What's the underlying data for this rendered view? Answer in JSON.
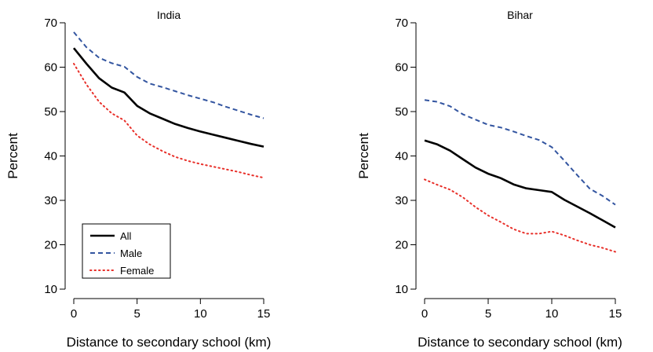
{
  "chart_data": [
    {
      "type": "line",
      "title": "India",
      "xlabel": "Distance to secondary school (km)",
      "ylabel": "Percent",
      "xlim": [
        0,
        15
      ],
      "ylim": [
        10,
        70
      ],
      "xticks": [
        0,
        5,
        10,
        15
      ],
      "yticks": [
        10,
        20,
        30,
        40,
        50,
        60,
        70
      ],
      "legend": "bottom-left",
      "grid": false,
      "x": [
        0,
        1,
        2,
        3,
        4,
        5,
        6,
        7,
        8,
        9,
        10,
        11,
        12,
        13,
        14,
        15
      ],
      "series": [
        {
          "name": "All",
          "color": "#000000",
          "dash": "solid",
          "values": [
            64.3,
            60.8,
            57.5,
            55.4,
            54.3,
            51.3,
            49.6,
            48.4,
            47.2,
            46.3,
            45.5,
            44.8,
            44.1,
            43.4,
            42.7,
            42.1
          ]
        },
        {
          "name": "Male",
          "color": "#3355a0",
          "dash": "dashed",
          "values": [
            67.9,
            64.5,
            62.1,
            60.9,
            60.1,
            57.8,
            56.3,
            55.5,
            54.6,
            53.7,
            52.9,
            52.1,
            51.1,
            50.2,
            49.3,
            48.5
          ]
        },
        {
          "name": "Female",
          "color": "#e8302a",
          "dash": "dotted",
          "values": [
            60.8,
            56.1,
            52.2,
            49.6,
            48.0,
            44.6,
            42.6,
            41.1,
            39.8,
            38.9,
            38.2,
            37.6,
            37.0,
            36.4,
            35.7,
            35.1
          ]
        }
      ]
    },
    {
      "type": "line",
      "title": "Bihar",
      "xlabel": "Distance to secondary school (km)",
      "ylabel": "Percent",
      "xlim": [
        0,
        15
      ],
      "ylim": [
        10,
        70
      ],
      "xticks": [
        0,
        5,
        10,
        15
      ],
      "yticks": [
        10,
        20,
        30,
        40,
        50,
        60,
        70
      ],
      "grid": false,
      "x": [
        0,
        1,
        2,
        3,
        4,
        5,
        6,
        7,
        8,
        9,
        10,
        11,
        12,
        13,
        14,
        15
      ],
      "series": [
        {
          "name": "All",
          "color": "#000000",
          "dash": "solid",
          "values": [
            43.5,
            42.6,
            41.2,
            39.3,
            37.4,
            36.0,
            35.0,
            33.6,
            32.7,
            32.3,
            31.9,
            30.1,
            28.6,
            27.1,
            25.5,
            23.9
          ]
        },
        {
          "name": "Male",
          "color": "#3355a0",
          "dash": "dashed",
          "values": [
            52.6,
            52.2,
            51.2,
            49.4,
            48.2,
            47.0,
            46.4,
            45.5,
            44.5,
            43.6,
            42.0,
            38.9,
            35.7,
            32.6,
            31.0,
            29.0
          ]
        },
        {
          "name": "Female",
          "color": "#e8302a",
          "dash": "dotted",
          "values": [
            34.7,
            33.5,
            32.4,
            30.7,
            28.5,
            26.6,
            25.1,
            23.5,
            22.5,
            22.5,
            23.0,
            22.1,
            21.0,
            20.0,
            19.3,
            18.4
          ]
        }
      ]
    }
  ]
}
